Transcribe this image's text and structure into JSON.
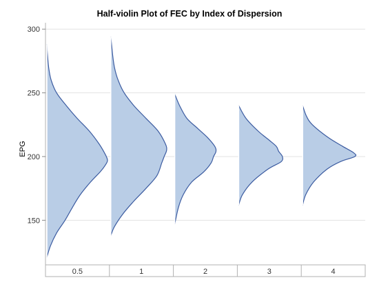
{
  "chart_data": {
    "type": "half-violin",
    "title": "Half-violin Plot of FEC by Index of Dispersion",
    "ylabel": "EPG",
    "xlabel": "",
    "ylim": [
      115,
      305
    ],
    "yticks": [
      150,
      200,
      250,
      300
    ],
    "categories": [
      "0.5",
      "1",
      "2",
      "3",
      "4"
    ],
    "grid": true,
    "fill_color": "#b9cde6",
    "line_color": "#3b5ba0",
    "series": [
      {
        "category": "0.5",
        "min": 121,
        "max": 288,
        "density": [
          [
            121,
            0.0
          ],
          [
            130,
            0.06
          ],
          [
            140,
            0.16
          ],
          [
            150,
            0.3
          ],
          [
            160,
            0.42
          ],
          [
            170,
            0.55
          ],
          [
            180,
            0.72
          ],
          [
            188,
            0.88
          ],
          [
            193,
            0.96
          ],
          [
            197,
            1.0
          ],
          [
            202,
            0.96
          ],
          [
            210,
            0.86
          ],
          [
            220,
            0.7
          ],
          [
            230,
            0.5
          ],
          [
            240,
            0.32
          ],
          [
            250,
            0.16
          ],
          [
            260,
            0.07
          ],
          [
            270,
            0.03
          ],
          [
            280,
            0.01
          ],
          [
            288,
            0.0
          ]
        ]
      },
      {
        "category": "1",
        "min": 138,
        "max": 294,
        "density": [
          [
            138,
            0.0
          ],
          [
            145,
            0.06
          ],
          [
            155,
            0.2
          ],
          [
            165,
            0.38
          ],
          [
            175,
            0.58
          ],
          [
            185,
            0.76
          ],
          [
            195,
            0.84
          ],
          [
            200,
            0.88
          ],
          [
            205,
            0.92
          ],
          [
            210,
            0.9
          ],
          [
            220,
            0.78
          ],
          [
            230,
            0.58
          ],
          [
            240,
            0.38
          ],
          [
            250,
            0.22
          ],
          [
            260,
            0.12
          ],
          [
            270,
            0.06
          ],
          [
            280,
            0.03
          ],
          [
            294,
            0.0
          ]
        ]
      },
      {
        "category": "2",
        "min": 147,
        "max": 249,
        "density": [
          [
            147,
            0.0
          ],
          [
            160,
            0.06
          ],
          [
            170,
            0.14
          ],
          [
            180,
            0.28
          ],
          [
            188,
            0.48
          ],
          [
            195,
            0.6
          ],
          [
            200,
            0.64
          ],
          [
            204,
            0.68
          ],
          [
            208,
            0.66
          ],
          [
            215,
            0.54
          ],
          [
            222,
            0.38
          ],
          [
            230,
            0.2
          ],
          [
            240,
            0.08
          ],
          [
            249,
            0.0
          ]
        ]
      },
      {
        "category": "3",
        "min": 162,
        "max": 240,
        "density": [
          [
            162,
            0.0
          ],
          [
            170,
            0.06
          ],
          [
            180,
            0.22
          ],
          [
            190,
            0.48
          ],
          [
            196,
            0.7
          ],
          [
            200,
            0.72
          ],
          [
            204,
            0.66
          ],
          [
            208,
            0.62
          ],
          [
            213,
            0.5
          ],
          [
            220,
            0.32
          ],
          [
            230,
            0.12
          ],
          [
            240,
            0.0
          ]
        ]
      },
      {
        "category": "4",
        "min": 162,
        "max": 240,
        "density": [
          [
            162,
            0.0
          ],
          [
            170,
            0.05
          ],
          [
            180,
            0.18
          ],
          [
            190,
            0.4
          ],
          [
            196,
            0.62
          ],
          [
            200,
            0.86
          ],
          [
            203,
            0.84
          ],
          [
            208,
            0.66
          ],
          [
            215,
            0.42
          ],
          [
            225,
            0.16
          ],
          [
            232,
            0.06
          ],
          [
            240,
            0.0
          ]
        ]
      }
    ]
  }
}
